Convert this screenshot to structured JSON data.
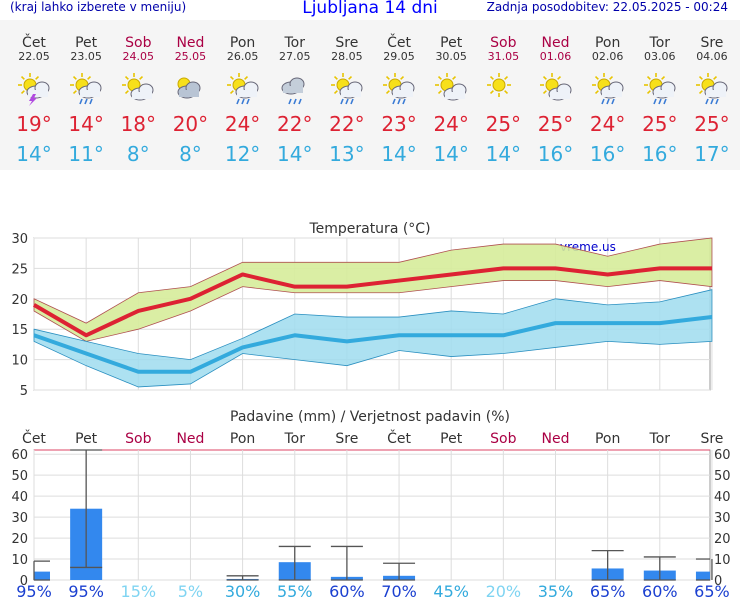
{
  "header": {
    "menu_hint": "(kraj lahko izberete v meniju)",
    "title": "Ljubljana 14 dni",
    "updated": "Zadnja posodobitev: 22.05.2025 - 00:24"
  },
  "forecast": [
    {
      "day": "Čet",
      "date": "22.05",
      "weekend": false,
      "icon": "sun-cloud-thunder-icon",
      "tmax": "19°",
      "tmin": "14°"
    },
    {
      "day": "Pet",
      "date": "23.05",
      "weekend": false,
      "icon": "sun-cloud-rain-icon",
      "tmax": "14°",
      "tmin": "11°"
    },
    {
      "day": "Sob",
      "date": "24.05",
      "weekend": true,
      "icon": "sun-cloud-icon",
      "tmax": "18°",
      "tmin": "8°"
    },
    {
      "day": "Ned",
      "date": "25.05",
      "weekend": true,
      "icon": "sun-behind-cloud-icon",
      "tmax": "20°",
      "tmin": "8°"
    },
    {
      "day": "Pon",
      "date": "26.05",
      "weekend": false,
      "icon": "sun-cloud-rain-icon",
      "tmax": "24°",
      "tmin": "12°"
    },
    {
      "day": "Tor",
      "date": "27.05",
      "weekend": false,
      "icon": "cloud-rain-icon",
      "tmax": "22°",
      "tmin": "14°"
    },
    {
      "day": "Sre",
      "date": "28.05",
      "weekend": false,
      "icon": "sun-cloud-rain-icon",
      "tmax": "22°",
      "tmin": "13°"
    },
    {
      "day": "Čet",
      "date": "29.05",
      "weekend": false,
      "icon": "sun-cloud-rain-icon",
      "tmax": "23°",
      "tmin": "14°"
    },
    {
      "day": "Pet",
      "date": "30.05",
      "weekend": false,
      "icon": "sun-cloud-icon",
      "tmax": "24°",
      "tmin": "14°"
    },
    {
      "day": "Sob",
      "date": "31.05",
      "weekend": true,
      "icon": "sun-icon",
      "tmax": "25°",
      "tmin": "14°"
    },
    {
      "day": "Ned",
      "date": "01.06",
      "weekend": true,
      "icon": "sun-cloud-icon",
      "tmax": "25°",
      "tmin": "16°"
    },
    {
      "day": "Pon",
      "date": "02.06",
      "weekend": false,
      "icon": "sun-cloud-rain-icon",
      "tmax": "24°",
      "tmin": "16°"
    },
    {
      "day": "Tor",
      "date": "03.06",
      "weekend": false,
      "icon": "sun-cloud-rain-icon",
      "tmax": "25°",
      "tmin": "16°"
    },
    {
      "day": "Sre",
      "date": "04.06",
      "weekend": false,
      "icon": "sun-cloud-rain-icon",
      "tmax": "25°",
      "tmin": "17°"
    }
  ],
  "colors": {
    "tmax": "#dd2233",
    "tmin": "#33aadd",
    "weekend": "#aa0044",
    "max_band": "#d6ec9a",
    "min_band": "#9fdcee",
    "bar": "#3388ee"
  },
  "chart_data": [
    {
      "type": "line",
      "title": "Temperatura (°C)",
      "watermark": "vreme.us",
      "categories": [
        "Čet",
        "Pet",
        "Sob",
        "Ned",
        "Pon",
        "Tor",
        "Sre",
        "Čet",
        "Pet",
        "Sob",
        "Ned",
        "Pon",
        "Tor",
        "Sre"
      ],
      "ylim": [
        5,
        30
      ],
      "yticks": [
        5,
        10,
        15,
        20,
        25,
        30
      ],
      "grid": true,
      "series": [
        {
          "name": "max",
          "values": [
            19,
            14,
            18,
            20,
            24,
            22,
            22,
            23,
            24,
            25,
            25,
            24,
            25,
            25
          ],
          "band_low": [
            18,
            13,
            15,
            18,
            22,
            21,
            21,
            21,
            22,
            23,
            23,
            22,
            23,
            22
          ],
          "band_high": [
            20,
            16,
            21,
            22,
            26,
            26,
            26,
            26,
            28,
            29,
            29,
            27,
            29,
            30
          ]
        },
        {
          "name": "min",
          "values": [
            14,
            11,
            8,
            8,
            12,
            14,
            13,
            14,
            14,
            14,
            16,
            16,
            16,
            17
          ],
          "band_low": [
            13,
            9,
            5.5,
            6,
            11,
            10,
            9,
            11.5,
            10.5,
            11,
            12,
            13,
            12.5,
            13
          ],
          "band_high": [
            15,
            13,
            11,
            10,
            13.5,
            17.5,
            17,
            17,
            18,
            17.5,
            20,
            19,
            19.5,
            21.5
          ]
        }
      ]
    },
    {
      "type": "bar",
      "title": "Padavine (mm) / Verjetnost padavin (%)",
      "categories": [
        "Čet",
        "Pet",
        "Sob",
        "Ned",
        "Pon",
        "Tor",
        "Sre",
        "Čet",
        "Pet",
        "Sob",
        "Ned",
        "Pon",
        "Tor",
        "Sre"
      ],
      "ylim": [
        0,
        62
      ],
      "yticks": [
        0,
        10,
        20,
        30,
        40,
        50,
        60
      ],
      "grid": true,
      "values": [
        4,
        34,
        0,
        0,
        0.5,
        8.5,
        1.5,
        2,
        0,
        0,
        0,
        5.5,
        4.5,
        4
      ],
      "err_low": [
        0,
        6,
        0,
        0,
        0,
        0,
        0,
        0,
        0,
        0,
        0,
        0,
        0,
        0
      ],
      "err_high": [
        9,
        62,
        0,
        0,
        2,
        16,
        16,
        8,
        0,
        0,
        0,
        14,
        11,
        10
      ],
      "probability": [
        "95%",
        "95%",
        "15%",
        "5%",
        "30%",
        "55%",
        "60%",
        "70%",
        "45%",
        "20%",
        "35%",
        "65%",
        "60%",
        "65%"
      ],
      "probability_colors": [
        "#1a3fd0",
        "#1a3fd0",
        "#7fd4f2",
        "#7fd4f2",
        "#33aadd",
        "#33aadd",
        "#1a3fd0",
        "#1a3fd0",
        "#33aadd",
        "#7fd4f2",
        "#33aadd",
        "#1a3fd0",
        "#1a3fd0",
        "#1a3fd0"
      ]
    }
  ]
}
